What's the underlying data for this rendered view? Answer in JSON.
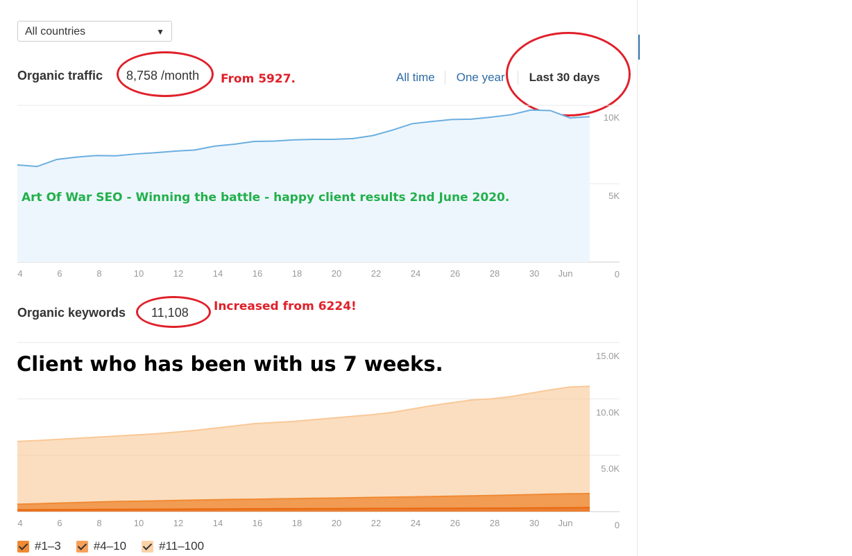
{
  "country_select": {
    "value": "All countries"
  },
  "traffic": {
    "label": "Organic traffic",
    "value": "8,758 /month",
    "note": "From 5927.",
    "tabs": [
      {
        "label": "All time",
        "active": false
      },
      {
        "label": "One year",
        "active": false
      },
      {
        "label": "Last 30 days",
        "active": true
      }
    ],
    "banner": "Art Of War SEO - Winning the battle - happy client results 2nd June 2020."
  },
  "keywords": {
    "label": "Organic keywords",
    "value": "11,108",
    "note": "Increased from 6224!",
    "banner": "Client who has been with us 7 weeks."
  },
  "legend": [
    {
      "label": "#1–3",
      "color": "#e8680f",
      "checked": true
    },
    {
      "label": "#4–10",
      "color": "#f08a34",
      "checked": true
    },
    {
      "label": "#11–100",
      "color": "#f9c896",
      "checked": true
    }
  ],
  "chart_data": [
    {
      "type": "area",
      "x_tick_labels": [
        "4",
        "6",
        "8",
        "10",
        "12",
        "14",
        "16",
        "18",
        "20",
        "22",
        "24",
        "26",
        "28",
        "30",
        "Jun"
      ],
      "y_tick_labels": [
        "10K",
        "5K",
        "0"
      ],
      "ylim": [
        0,
        10000
      ],
      "grid": true,
      "color": "#6aaee0",
      "series": [
        {
          "values": [
            6200,
            6100,
            6550,
            6700,
            6800,
            6780,
            6900,
            6980,
            7080,
            7150,
            7400,
            7520,
            7700,
            7720,
            7800,
            7830,
            7830,
            7880,
            8070,
            8420,
            8830,
            8970,
            9100,
            9120,
            9250,
            9400,
            9700,
            9670,
            9200,
            9280
          ]
        }
      ]
    },
    {
      "type": "area",
      "x_tick_labels": [
        "4",
        "6",
        "8",
        "10",
        "12",
        "14",
        "16",
        "18",
        "20",
        "22",
        "24",
        "26",
        "28",
        "30",
        "Jun"
      ],
      "y_tick_labels": [
        "15.0K",
        "10.0K",
        "5.0K",
        "0"
      ],
      "ylim": [
        0,
        15000
      ],
      "grid": true,
      "series": [
        {
          "name": "#1–3",
          "color": "#e8680f",
          "values": [
            150,
            160,
            170,
            180,
            190,
            195,
            200,
            210,
            215,
            220,
            230,
            240,
            245,
            250,
            255,
            260,
            265,
            270,
            275,
            280,
            285,
            290,
            295,
            300,
            305,
            310,
            320,
            330,
            340,
            350
          ]
        },
        {
          "name": "#4–10",
          "color": "#f08a34",
          "values": [
            650,
            700,
            750,
            800,
            850,
            900,
            920,
            950,
            990,
            1020,
            1050,
            1080,
            1100,
            1130,
            1150,
            1180,
            1200,
            1230,
            1260,
            1280,
            1310,
            1340,
            1370,
            1400,
            1430,
            1470,
            1510,
            1550,
            1580,
            1600
          ]
        },
        {
          "name": "#11–100",
          "color": "#f9c896",
          "values": [
            6224,
            6300,
            6400,
            6500,
            6600,
            6700,
            6800,
            6900,
            7050,
            7200,
            7400,
            7600,
            7800,
            7900,
            8000,
            8150,
            8300,
            8450,
            8600,
            8800,
            9100,
            9400,
            9650,
            9900,
            10000,
            10200,
            10500,
            10800,
            11050,
            11108
          ]
        }
      ]
    }
  ]
}
